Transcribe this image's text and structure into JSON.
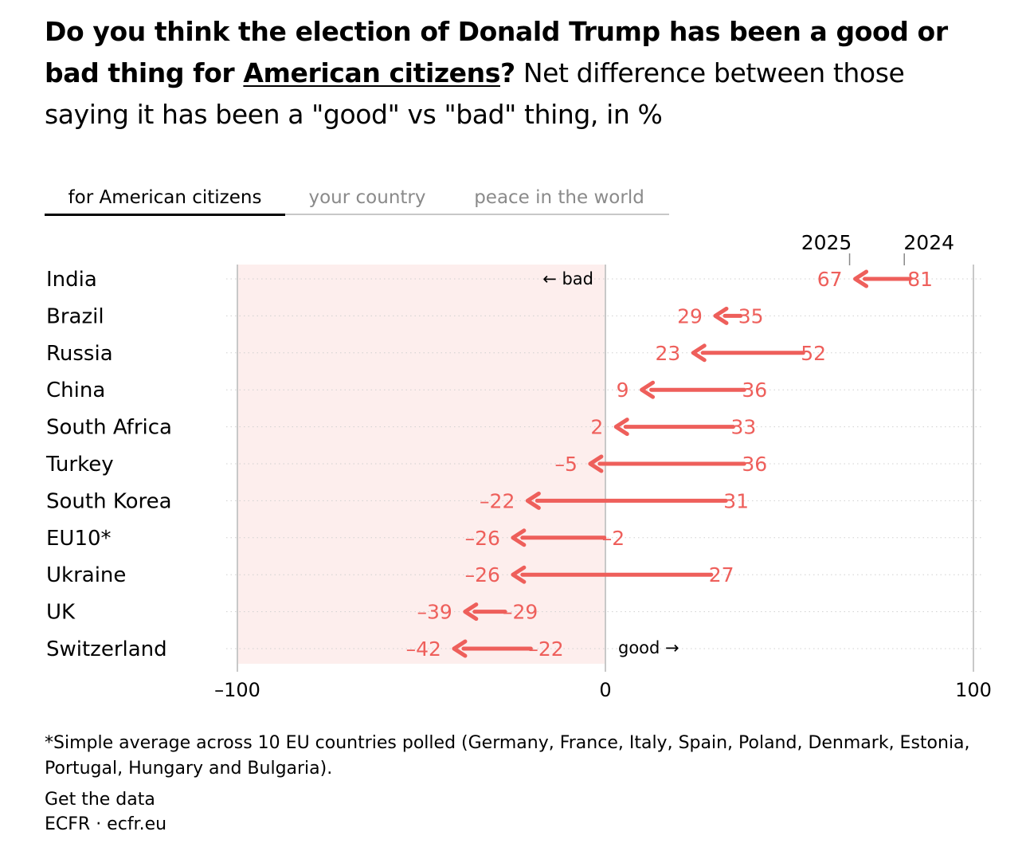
{
  "title": {
    "bold_part": "Do you think the election of Donald Trump has been a good or bad thing for ",
    "underlined_part": "American citizens",
    "question_mark": "?",
    "subtitle": " Net difference between those saying it has been a \"good\" vs \"bad\" thing, in %"
  },
  "tabs": [
    {
      "label": "for American citizens",
      "active": true
    },
    {
      "label": "your country",
      "active": false
    },
    {
      "label": "peace in the world",
      "active": false
    }
  ],
  "colors": {
    "accent": "#ee5f5b",
    "negative_band": "#fdeeed",
    "zero_line": "#c8c8c8",
    "grid": "#d0d0d0",
    "text": "#000000"
  },
  "chart_data": {
    "type": "arrow-dot",
    "xlim": [
      -100,
      100
    ],
    "x_ticks": [
      -100,
      0,
      100
    ],
    "x_tick_labels": [
      "–100",
      "0",
      "100"
    ],
    "series_labels": {
      "start": "2024",
      "end": "2025"
    },
    "annotations": {
      "bad": "← bad",
      "good": "good →"
    },
    "categories": [
      "India",
      "Brazil",
      "Russia",
      "China",
      "South Africa",
      "Turkey",
      "South Korea",
      "EU10*",
      "Ukraine",
      "UK",
      "Switzerland"
    ],
    "series": [
      {
        "name": "2024",
        "values": [
          81,
          35,
          52,
          36,
          33,
          36,
          31,
          -2,
          27,
          -29,
          -22
        ],
        "labels": [
          "81",
          "35",
          "52",
          "36",
          "33",
          "36",
          "31",
          "–2",
          "27",
          "–29",
          "–22"
        ]
      },
      {
        "name": "2025",
        "values": [
          67,
          29,
          23,
          9,
          2,
          -5,
          -22,
          -26,
          -26,
          -39,
          -42
        ],
        "labels": [
          "67",
          "29",
          "23",
          "9",
          "2",
          "–5",
          "–22",
          "–26",
          "–26",
          "–39",
          "–42"
        ]
      }
    ]
  },
  "footnote": "*Simple average across 10 EU countries polled (Germany, France, Italy, Spain, Poland, Denmark, Estonia, Portugal, Hungary and Bulgaria).",
  "get_data": "Get the data",
  "credit": "ECFR · ecfr.eu"
}
